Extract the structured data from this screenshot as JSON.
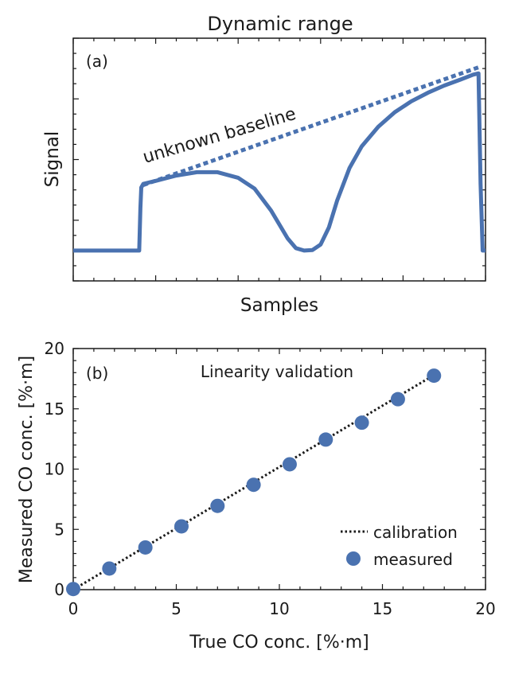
{
  "chart_data": [
    {
      "id": "a",
      "type": "line",
      "title": "Dynamic range",
      "panel_label": "(a)",
      "xlabel": "Samples",
      "ylabel": "Signal",
      "annotation": "unknown baseline",
      "x_ticks_labeled": false,
      "y_ticks_labeled": false,
      "xlim": [
        0,
        100
      ],
      "ylim": [
        0,
        100
      ],
      "color": "#4a72b0",
      "series": [
        {
          "style": "solid",
          "x": [
            0,
            16.0,
            16.3,
            16.5,
            17.0,
            20,
            25,
            30,
            35,
            40,
            44,
            48,
            52,
            54,
            56,
            58,
            60,
            62,
            64,
            67,
            70,
            74,
            78,
            82,
            86,
            90,
            94,
            97,
            98.3,
            98.8,
            99.3,
            100
          ],
          "y": [
            12.5,
            12.5,
            30,
            38.5,
            40,
            41.2,
            43.4,
            44.8,
            44.8,
            42.5,
            38,
            29,
            17.5,
            13.5,
            12.5,
            12.7,
            15,
            22,
            33,
            46.5,
            55.5,
            63.5,
            69.5,
            74,
            77.5,
            80.5,
            83,
            85,
            85.5,
            40,
            12.5,
            12.5
          ]
        },
        {
          "style": "dotted",
          "x": [
            17,
            98.3
          ],
          "y": [
            39.5,
            88
          ]
        }
      ]
    },
    {
      "id": "b",
      "type": "scatter",
      "title": "Linearity validation",
      "panel_label": "(b)",
      "xlabel": "True CO conc. [%·m]",
      "ylabel": "Measured CO conc. [%·m]",
      "xlim": [
        0,
        20
      ],
      "ylim": [
        0,
        20
      ],
      "xticks": [
        0,
        5,
        10,
        15,
        20
      ],
      "yticks": [
        0,
        5,
        10,
        15,
        20
      ],
      "legend_position": "bottom-right",
      "color": "#4a72b0",
      "series": [
        {
          "name": "calibration",
          "style": "dotted-line",
          "x": [
            0,
            17.5
          ],
          "y": [
            0,
            17.8
          ]
        },
        {
          "name": "measured",
          "style": "markers",
          "x": [
            0,
            1.75,
            3.5,
            5.25,
            7.0,
            8.75,
            10.5,
            12.25,
            14.0,
            15.75,
            17.5
          ],
          "y": [
            0.05,
            1.75,
            3.5,
            5.25,
            6.95,
            8.7,
            10.4,
            12.45,
            13.85,
            15.8,
            17.75
          ]
        }
      ]
    }
  ]
}
